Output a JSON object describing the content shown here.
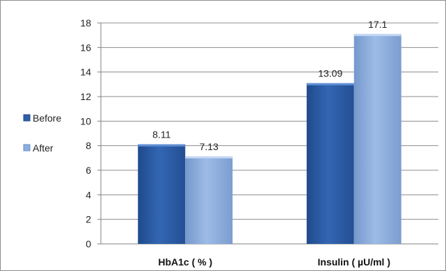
{
  "chart_data": {
    "type": "bar",
    "categories": [
      "HbA1c ( % )",
      "Insulin ( µU/ml )"
    ],
    "series": [
      {
        "name": "Before",
        "values": [
          8.11,
          13.09
        ],
        "color": "#2e5fa8"
      },
      {
        "name": "After",
        "values": [
          7.13,
          17.1
        ],
        "color": "#8aaee0"
      }
    ],
    "data_labels": [
      [
        "8.11",
        "13.09"
      ],
      [
        "7.13",
        "17.1"
      ]
    ],
    "yticks": [
      "0",
      "2",
      "4",
      "6",
      "8",
      "10",
      "12",
      "14",
      "16",
      "18"
    ],
    "ylim": [
      0,
      18
    ],
    "grid": true,
    "legend": "left"
  }
}
